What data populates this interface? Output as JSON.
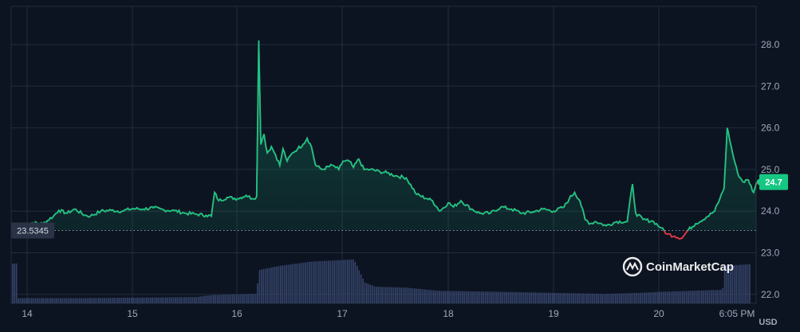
{
  "chart_data": {
    "type": "area",
    "ylabel": "",
    "currency": "USD",
    "ylim": [
      21.85,
      28.85
    ],
    "y_ticks": [
      "28.0",
      "27.0",
      "26.0",
      "25.0",
      "24.0",
      "23.0",
      "22.0"
    ],
    "x_ticks": [
      "14",
      "15",
      "16",
      "17",
      "18",
      "19",
      "20",
      "6:05 PM"
    ],
    "baseline_value": 23.5345,
    "baseline_label": "23.5345",
    "current_value": 24.7,
    "current_label": "24.7",
    "grid": true,
    "colors": {
      "up": "#16c784",
      "down": "#ea3943",
      "volume": "#3b4a73",
      "grid": "#222b3d",
      "background": "#0d1421",
      "badge": "#16c784",
      "baseline_badge": "#2a3345"
    },
    "series": [
      {
        "values": [
          [
            13.95,
            23.62
          ],
          [
            14.05,
            23.72
          ],
          [
            14.15,
            23.7
          ],
          [
            14.25,
            23.88
          ],
          [
            14.3,
            24.02
          ],
          [
            14.38,
            23.95
          ],
          [
            14.45,
            24.05
          ],
          [
            14.55,
            23.9
          ],
          [
            14.6,
            23.88
          ],
          [
            14.7,
            24.0
          ],
          [
            14.8,
            24.02
          ],
          [
            14.9,
            24.0
          ],
          [
            15.0,
            24.06
          ],
          [
            15.1,
            24.05
          ],
          [
            15.2,
            24.08
          ],
          [
            15.3,
            24.03
          ],
          [
            15.4,
            24.01
          ],
          [
            15.5,
            23.95
          ],
          [
            15.6,
            23.93
          ],
          [
            15.7,
            23.9
          ],
          [
            15.75,
            23.88
          ],
          [
            15.78,
            24.45
          ],
          [
            15.82,
            24.25
          ],
          [
            15.9,
            24.33
          ],
          [
            16.0,
            24.3
          ],
          [
            16.08,
            24.38
          ],
          [
            16.14,
            24.3
          ],
          [
            16.18,
            24.35
          ],
          [
            16.2,
            28.1
          ],
          [
            16.22,
            25.6
          ],
          [
            16.25,
            25.85
          ],
          [
            16.28,
            25.4
          ],
          [
            16.32,
            25.55
          ],
          [
            16.36,
            25.35
          ],
          [
            16.4,
            25.1
          ],
          [
            16.43,
            25.5
          ],
          [
            16.47,
            25.2
          ],
          [
            16.52,
            25.4
          ],
          [
            16.57,
            25.5
          ],
          [
            16.62,
            25.6
          ],
          [
            16.66,
            25.75
          ],
          [
            16.7,
            25.55
          ],
          [
            16.74,
            25.1
          ],
          [
            16.8,
            25.0
          ],
          [
            16.9,
            25.1
          ],
          [
            16.96,
            25.0
          ],
          [
            17.0,
            25.2
          ],
          [
            17.06,
            25.2
          ],
          [
            17.1,
            25.05
          ],
          [
            17.15,
            25.25
          ],
          [
            17.2,
            25.0
          ],
          [
            17.26,
            25.0
          ],
          [
            17.35,
            24.95
          ],
          [
            17.42,
            24.92
          ],
          [
            17.5,
            24.85
          ],
          [
            17.6,
            24.8
          ],
          [
            17.7,
            24.4
          ],
          [
            17.8,
            24.3
          ],
          [
            17.85,
            24.25
          ],
          [
            17.92,
            24.0
          ],
          [
            18.0,
            24.2
          ],
          [
            18.05,
            24.1
          ],
          [
            18.12,
            24.25
          ],
          [
            18.22,
            24.05
          ],
          [
            18.3,
            23.95
          ],
          [
            18.4,
            23.95
          ],
          [
            18.5,
            24.1
          ],
          [
            18.6,
            24.05
          ],
          [
            18.7,
            23.95
          ],
          [
            18.8,
            23.98
          ],
          [
            18.9,
            24.05
          ],
          [
            19.0,
            24.0
          ],
          [
            19.1,
            24.1
          ],
          [
            19.15,
            24.3
          ],
          [
            19.2,
            24.45
          ],
          [
            19.25,
            24.25
          ],
          [
            19.3,
            23.8
          ],
          [
            19.35,
            23.7
          ],
          [
            19.4,
            23.75
          ],
          [
            19.5,
            23.65
          ],
          [
            19.6,
            23.75
          ],
          [
            19.7,
            23.75
          ],
          [
            19.75,
            24.65
          ],
          [
            19.78,
            23.95
          ],
          [
            19.85,
            23.8
          ],
          [
            19.95,
            23.75
          ],
          [
            20.02,
            23.6
          ],
          [
            20.08,
            23.45
          ],
          [
            20.15,
            23.4
          ],
          [
            20.22,
            23.35
          ],
          [
            20.28,
            23.55
          ],
          [
            20.35,
            23.7
          ],
          [
            20.45,
            23.85
          ],
          [
            20.53,
            24.0
          ],
          [
            20.58,
            24.3
          ],
          [
            20.62,
            24.55
          ],
          [
            20.65,
            26.0
          ],
          [
            20.7,
            25.4
          ],
          [
            20.75,
            24.9
          ],
          [
            20.8,
            24.7
          ],
          [
            20.85,
            24.75
          ],
          [
            20.9,
            24.45
          ],
          [
            20.93,
            24.7
          ]
        ]
      }
    ],
    "volume": [
      [
        13.9,
        0.05
      ],
      [
        14.5,
        0.05
      ],
      [
        15.6,
        0.06
      ],
      [
        15.75,
        0.08
      ],
      [
        16.17,
        0.09
      ],
      [
        16.2,
        0.32
      ],
      [
        16.4,
        0.36
      ],
      [
        16.7,
        0.4
      ],
      [
        17.1,
        0.42
      ],
      [
        17.2,
        0.2
      ],
      [
        17.3,
        0.16
      ],
      [
        17.6,
        0.15
      ],
      [
        17.9,
        0.12
      ],
      [
        18.5,
        0.11
      ],
      [
        19.0,
        0.1
      ],
      [
        19.5,
        0.09
      ],
      [
        19.8,
        0.1
      ],
      [
        20.0,
        0.11
      ],
      [
        20.6,
        0.13
      ],
      [
        20.62,
        0.36
      ],
      [
        20.95,
        0.38
      ]
    ]
  },
  "watermark": {
    "text": "CoinMarketCap",
    "logo": "coinmarketcap-logo"
  }
}
